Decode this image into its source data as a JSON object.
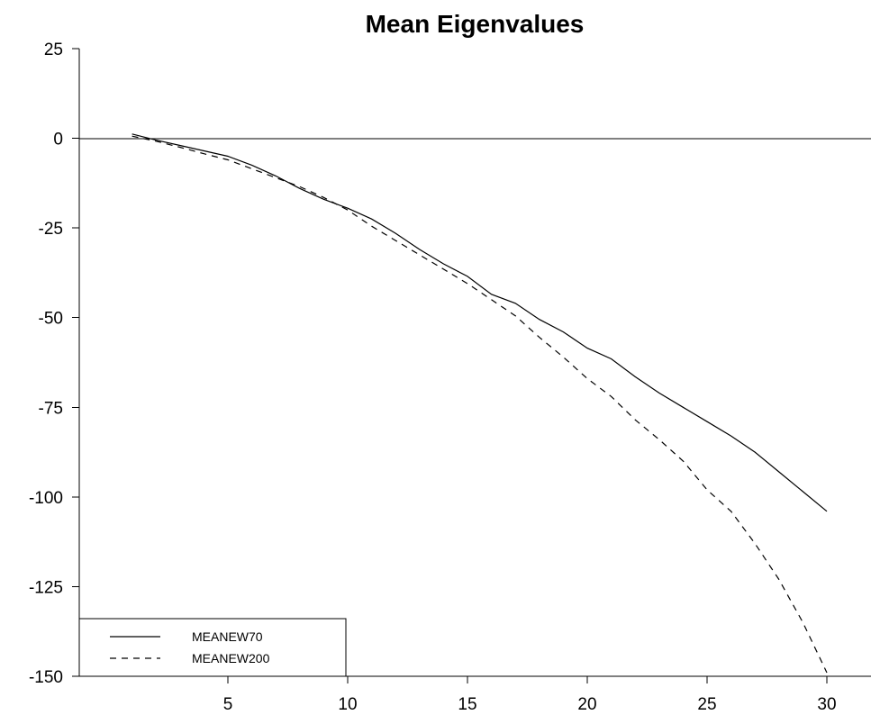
{
  "chart_data": {
    "type": "line",
    "title": "Mean Eigenvalues",
    "xlabel": "",
    "ylabel": "",
    "xlim": [
      0,
      31
    ],
    "ylim": [
      -150,
      25
    ],
    "xticks": [
      5,
      10,
      15,
      20,
      25,
      30
    ],
    "yticks": [
      25,
      0,
      -25,
      -50,
      -75,
      -100,
      -125,
      -150
    ],
    "zero_line": true,
    "grid": false,
    "legend": {
      "position": "bottom-left"
    },
    "x": [
      1,
      2,
      3,
      4,
      5,
      6,
      7,
      8,
      9,
      10,
      11,
      12,
      13,
      14,
      15,
      16,
      17,
      18,
      19,
      20,
      21,
      22,
      23,
      24,
      25,
      26,
      27,
      28,
      29,
      30
    ],
    "series": [
      {
        "name": "MEANEW70",
        "line_style": "solid",
        "values": [
          1.2,
          -0.5,
          -2,
          -3.5,
          -5,
          -7.5,
          -10.5,
          -14,
          -17,
          -19.5,
          -22.5,
          -26.5,
          -31,
          -35,
          -38.5,
          -43.5,
          -46,
          -50.5,
          -54,
          -58.5,
          -61.5,
          -66.5,
          -71,
          -75,
          -79,
          -83,
          -87.5,
          -93,
          -98.5,
          -104
        ]
      },
      {
        "name": "MEANEW200",
        "line_style": "dashed",
        "values": [
          0.6,
          -0.8,
          -2.5,
          -4.3,
          -6,
          -8.5,
          -11,
          -13.5,
          -16.5,
          -20,
          -24.5,
          -28.5,
          -32.5,
          -36.5,
          -40.5,
          -45,
          -49.5,
          -55.5,
          -61,
          -67,
          -72,
          -78.5,
          -84,
          -90,
          -98,
          -104,
          -113,
          -123,
          -135,
          -149
        ]
      }
    ]
  }
}
